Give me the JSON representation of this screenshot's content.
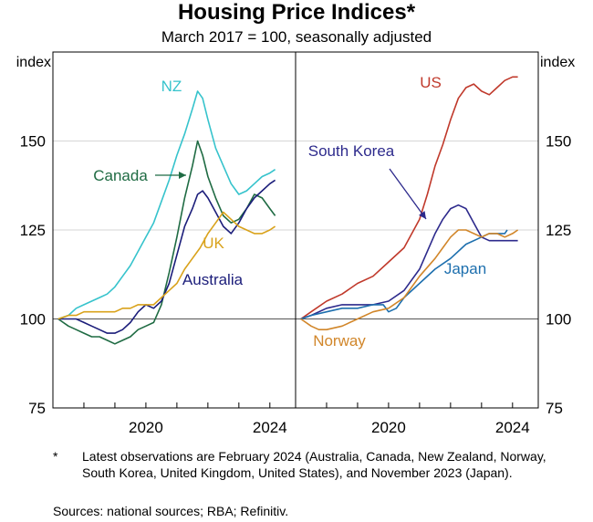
{
  "title": "Housing Price Indices*",
  "subtitle": "March 2017 = 100, seasonally adjusted",
  "footnote": {
    "marker": "*",
    "text": "Latest observations are February 2024 (Australia, Canada, New Zealand, Norway, South Korea, United Kingdom, United States), and November 2023 (Japan)."
  },
  "sources": "Sources: national sources; RBA; Refinitiv.",
  "chart_data": [
    {
      "type": "line",
      "panel": "left",
      "ylabel": "index",
      "ylim": [
        75,
        175
      ],
      "yticks": [
        75,
        100,
        125,
        150
      ],
      "xlim": [
        2017.0,
        2024.83
      ],
      "xticks": [
        2020,
        2024
      ],
      "grid": true,
      "series": [
        {
          "name": "NZ",
          "color": "#36c3cc",
          "x": [
            2017.17,
            2017.5,
            2017.75,
            2018.0,
            2018.25,
            2018.5,
            2018.75,
            2019.0,
            2019.25,
            2019.5,
            2019.75,
            2020.0,
            2020.25,
            2020.5,
            2020.75,
            2021.0,
            2021.25,
            2021.5,
            2021.67,
            2021.83,
            2022.0,
            2022.25,
            2022.5,
            2022.75,
            2023.0,
            2023.25,
            2023.5,
            2023.75,
            2024.0,
            2024.17
          ],
          "y": [
            100,
            101,
            103,
            104,
            105,
            106,
            107,
            109,
            112,
            115,
            119,
            123,
            127,
            133,
            139,
            146,
            152,
            159,
            164,
            162,
            156,
            148,
            143,
            138,
            135,
            136,
            138,
            140,
            141,
            142
          ]
        },
        {
          "name": "Canada",
          "color": "#1f6b43",
          "x": [
            2017.17,
            2017.5,
            2017.75,
            2018.0,
            2018.25,
            2018.5,
            2018.75,
            2019.0,
            2019.25,
            2019.5,
            2019.75,
            2020.0,
            2020.25,
            2020.5,
            2020.75,
            2021.0,
            2021.25,
            2021.5,
            2021.67,
            2021.83,
            2022.0,
            2022.25,
            2022.5,
            2022.75,
            2023.0,
            2023.25,
            2023.5,
            2023.75,
            2024.0,
            2024.17
          ],
          "y": [
            100,
            98,
            97,
            96,
            95,
            95,
            94,
            93,
            94,
            95,
            97,
            98,
            99,
            104,
            113,
            123,
            134,
            143,
            150,
            146,
            140,
            134,
            129,
            127,
            128,
            131,
            135,
            134,
            131,
            129
          ]
        },
        {
          "name": "Australia",
          "color": "#1b1d7a",
          "x": [
            2017.17,
            2017.5,
            2017.75,
            2018.0,
            2018.25,
            2018.5,
            2018.75,
            2019.0,
            2019.25,
            2019.5,
            2019.75,
            2020.0,
            2020.25,
            2020.5,
            2020.75,
            2021.0,
            2021.25,
            2021.5,
            2021.67,
            2021.83,
            2022.0,
            2022.25,
            2022.5,
            2022.75,
            2023.0,
            2023.25,
            2023.5,
            2023.75,
            2024.0,
            2024.17
          ],
          "y": [
            100,
            100,
            100,
            99,
            98,
            97,
            96,
            96,
            97,
            99,
            102,
            104,
            103,
            105,
            110,
            118,
            126,
            131,
            135,
            136,
            134,
            130,
            126,
            124,
            127,
            131,
            134,
            136,
            138,
            139
          ]
        },
        {
          "name": "UK",
          "color": "#d9a21b",
          "x": [
            2017.17,
            2017.5,
            2017.75,
            2018.0,
            2018.25,
            2018.5,
            2018.75,
            2019.0,
            2019.25,
            2019.5,
            2019.75,
            2020.0,
            2020.25,
            2020.5,
            2020.75,
            2021.0,
            2021.25,
            2021.5,
            2021.75,
            2022.0,
            2022.25,
            2022.5,
            2022.75,
            2023.0,
            2023.25,
            2023.5,
            2023.75,
            2024.0,
            2024.17
          ],
          "y": [
            100,
            101,
            101,
            102,
            102,
            102,
            102,
            102,
            103,
            103,
            104,
            104,
            104,
            106,
            108,
            110,
            114,
            117,
            120,
            124,
            127,
            130,
            128,
            126,
            125,
            124,
            124,
            125,
            126
          ]
        }
      ],
      "annotations": [
        {
          "text": "NZ",
          "series": "NZ"
        },
        {
          "text": "Canada",
          "series": "Canada",
          "arrow": true
        },
        {
          "text": "UK",
          "series": "UK"
        },
        {
          "text": "Australia",
          "series": "Australia"
        }
      ]
    },
    {
      "type": "line",
      "panel": "right",
      "ylabel": "index",
      "ylim": [
        75,
        175
      ],
      "yticks": [
        75,
        100,
        125,
        150
      ],
      "xlim": [
        2017.0,
        2024.83
      ],
      "xticks": [
        2020,
        2024
      ],
      "grid": true,
      "series": [
        {
          "name": "US",
          "color": "#c0392b",
          "x": [
            2017.17,
            2017.5,
            2018.0,
            2018.5,
            2019.0,
            2019.5,
            2020.0,
            2020.5,
            2021.0,
            2021.25,
            2021.5,
            2021.75,
            2022.0,
            2022.25,
            2022.5,
            2022.75,
            2023.0,
            2023.25,
            2023.5,
            2023.75,
            2024.0,
            2024.17
          ],
          "y": [
            100,
            102,
            105,
            107,
            110,
            112,
            116,
            120,
            128,
            135,
            143,
            149,
            156,
            162,
            165,
            166,
            164,
            163,
            165,
            167,
            168,
            168
          ]
        },
        {
          "name": "South Korea",
          "color": "#2d2a8c",
          "x": [
            2017.17,
            2017.5,
            2018.0,
            2018.5,
            2019.0,
            2019.5,
            2020.0,
            2020.5,
            2021.0,
            2021.25,
            2021.5,
            2021.75,
            2022.0,
            2022.25,
            2022.5,
            2022.75,
            2023.0,
            2023.25,
            2023.5,
            2023.75,
            2024.0,
            2024.17
          ],
          "y": [
            100,
            101,
            103,
            104,
            104,
            104,
            105,
            108,
            114,
            119,
            124,
            128,
            131,
            132,
            131,
            127,
            123,
            122,
            122,
            122,
            122,
            122
          ]
        },
        {
          "name": "Japan",
          "color": "#1d6fae",
          "x": [
            2017.17,
            2017.5,
            2018.0,
            2018.5,
            2019.0,
            2019.5,
            2019.83,
            2020.0,
            2020.25,
            2020.5,
            2021.0,
            2021.5,
            2022.0,
            2022.5,
            2023.0,
            2023.25,
            2023.5,
            2023.75,
            2023.83
          ],
          "y": [
            100,
            101,
            102,
            103,
            103,
            104,
            104,
            102,
            103,
            106,
            110,
            114,
            117,
            121,
            123,
            124,
            124,
            124,
            125
          ]
        },
        {
          "name": "Norway",
          "color": "#d1862a",
          "x": [
            2017.17,
            2017.5,
            2017.75,
            2018.0,
            2018.5,
            2019.0,
            2019.5,
            2020.0,
            2020.5,
            2021.0,
            2021.5,
            2021.75,
            2022.0,
            2022.25,
            2022.5,
            2022.75,
            2023.0,
            2023.25,
            2023.5,
            2023.75,
            2024.0,
            2024.17
          ],
          "y": [
            100,
            98,
            97,
            97,
            98,
            100,
            102,
            103,
            106,
            112,
            117,
            120,
            123,
            125,
            125,
            124,
            123,
            124,
            124,
            123,
            124,
            125
          ]
        }
      ],
      "annotations": [
        {
          "text": "US",
          "series": "US"
        },
        {
          "text": "South Korea",
          "series": "South Korea",
          "arrow": true
        },
        {
          "text": "Japan",
          "series": "Japan"
        },
        {
          "text": "Norway",
          "series": "Norway"
        }
      ]
    }
  ]
}
